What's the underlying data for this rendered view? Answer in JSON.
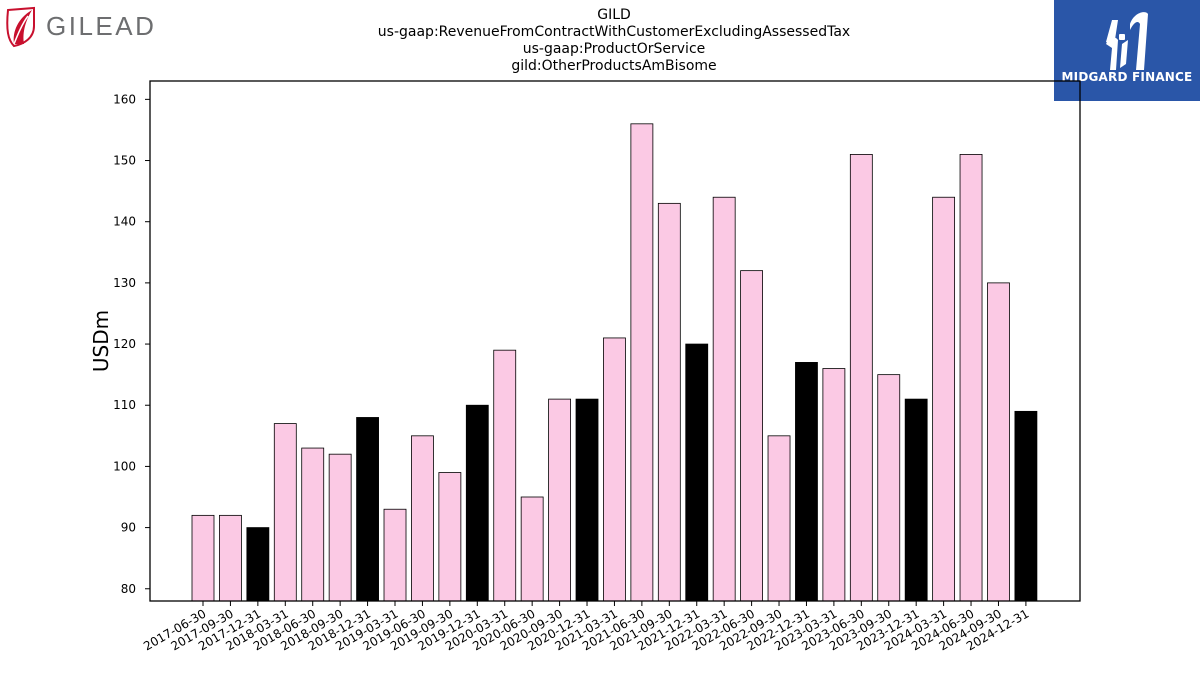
{
  "logos": {
    "left": {
      "brand": "GILEAD",
      "icon": "gilead-leaf-icon",
      "color": "#c8102e"
    },
    "right": {
      "brand": "MIDGARD FINANCE",
      "icon": "midgard-m-icon",
      "bg": "#2a56a8"
    }
  },
  "chart_data": {
    "type": "bar",
    "title_lines": [
      "GILD",
      "us-gaap:RevenueFromContractWithCustomerExcludingAssessedTax",
      "us-gaap:ProductOrService",
      "gild:OtherProductsAmBisome"
    ],
    "ylabel": "USDm",
    "xlabel": "",
    "ylim": [
      78,
      163
    ],
    "yticks": [
      80,
      90,
      100,
      110,
      120,
      130,
      140,
      150,
      160
    ],
    "grid": false,
    "colors": {
      "quarter": "#fbc9e4",
      "year_end": "#000000",
      "edge": "#000000"
    },
    "categories": [
      "2017-06-30",
      "2017-09-30",
      "2017-12-31",
      "2018-03-31",
      "2018-06-30",
      "2018-09-30",
      "2018-12-31",
      "2019-03-31",
      "2019-06-30",
      "2019-09-30",
      "2019-12-31",
      "2020-03-31",
      "2020-06-30",
      "2020-09-30",
      "2020-12-31",
      "2021-03-31",
      "2021-06-30",
      "2021-09-30",
      "2021-12-31",
      "2022-03-31",
      "2022-06-30",
      "2022-09-30",
      "2022-12-31",
      "2023-03-31",
      "2023-06-30",
      "2023-09-30",
      "2023-12-31",
      "2024-03-31",
      "2024-06-30",
      "2024-09-30",
      "2024-12-31"
    ],
    "values": [
      92,
      92,
      90,
      107,
      103,
      102,
      108,
      93,
      105,
      99,
      110,
      119,
      95,
      111,
      111,
      121,
      156,
      143,
      120,
      144,
      132,
      105,
      117,
      116,
      151,
      115,
      111,
      144,
      151,
      130,
      109
    ]
  }
}
